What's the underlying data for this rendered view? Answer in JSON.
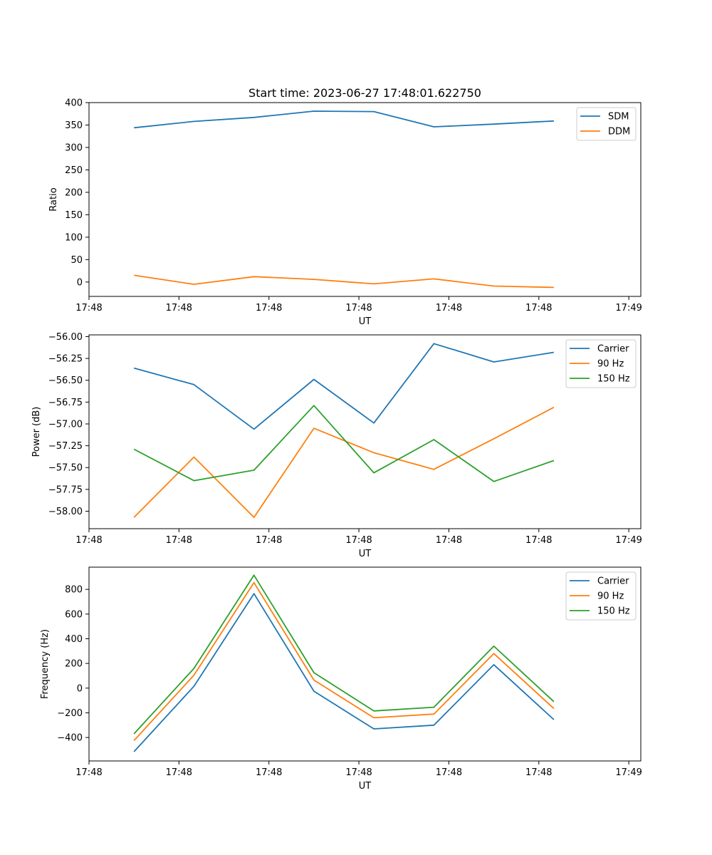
{
  "figure": {
    "title": "Start time: 2023-06-27 17:48:01.622750"
  },
  "chart_data": [
    {
      "type": "line",
      "title": "Start time: 2023-06-27 17:48:01.622750",
      "xlabel": "UT",
      "ylabel": "Ratio",
      "x_tick_labels": [
        "17:48",
        "17:48",
        "17:48",
        "17:48",
        "17:48",
        "17:48",
        "17:49"
      ],
      "y_ticks": [
        0,
        50,
        100,
        150,
        200,
        250,
        300,
        350,
        400
      ],
      "ylim": [
        -32,
        400
      ],
      "xlim": [
        0.0,
        9.2
      ],
      "x": [
        0.75,
        1.75,
        2.75,
        3.75,
        4.75,
        5.75,
        6.75,
        7.75
      ],
      "series": [
        {
          "name": "SDM",
          "color": "#1f77b4",
          "values": [
            344,
            358,
            367,
            381,
            380,
            346,
            352,
            359
          ]
        },
        {
          "name": "DDM",
          "color": "#ff7f0e",
          "values": [
            15,
            -5,
            12,
            6,
            -4,
            7,
            -9,
            -12
          ]
        }
      ],
      "legend": "top-right",
      "grid": false
    },
    {
      "type": "line",
      "xlabel": "UT",
      "ylabel": "Power (dB)",
      "x_tick_labels": [
        "17:48",
        "17:48",
        "17:48",
        "17:48",
        "17:48",
        "17:48",
        "17:49"
      ],
      "y_ticks": [
        -58.0,
        -57.75,
        -57.5,
        -57.25,
        -57.0,
        -56.75,
        -56.5,
        -56.25,
        -56.0
      ],
      "y_tick_labels": [
        "−58.00",
        "−57.75",
        "−57.50",
        "−57.25",
        "−57.00",
        "−56.75",
        "−56.50",
        "−56.25",
        "−56.00"
      ],
      "ylim": [
        -58.2,
        -55.98
      ],
      "xlim": [
        0.0,
        9.2
      ],
      "x": [
        0.75,
        1.75,
        2.75,
        3.75,
        4.75,
        5.75,
        6.75,
        7.75
      ],
      "series": [
        {
          "name": "Carrier",
          "color": "#1f77b4",
          "values": [
            -56.36,
            -56.55,
            -57.06,
            -56.49,
            -56.99,
            -56.08,
            -56.29,
            -56.18
          ]
        },
        {
          "name": "90 Hz",
          "color": "#ff7f0e",
          "values": [
            -58.07,
            -57.38,
            -58.07,
            -57.05,
            -57.33,
            -57.52,
            -57.17,
            -56.81
          ]
        },
        {
          "name": "150 Hz",
          "color": "#2ca02c",
          "values": [
            -57.29,
            -57.65,
            -57.53,
            -56.79,
            -57.56,
            -57.18,
            -57.66,
            -57.42
          ]
        }
      ],
      "legend": "top-right",
      "grid": false
    },
    {
      "type": "line",
      "xlabel": "UT",
      "ylabel": "Frequency (Hz)",
      "x_tick_labels": [
        "17:48",
        "17:48",
        "17:48",
        "17:48",
        "17:48",
        "17:48",
        "17:49"
      ],
      "y_ticks": [
        -400,
        -200,
        0,
        200,
        400,
        600,
        800
      ],
      "y_tick_labels": [
        "−400",
        "−200",
        "0",
        "200",
        "400",
        "600",
        "800"
      ],
      "ylim": [
        -590,
        980
      ],
      "xlim": [
        0.0,
        9.2
      ],
      "x": [
        0.75,
        1.75,
        2.75,
        3.75,
        4.75,
        5.75,
        6.75,
        7.75
      ],
      "series": [
        {
          "name": "Carrier",
          "color": "#1f77b4",
          "values": [
            -515,
            15,
            765,
            -25,
            -330,
            -300,
            190,
            -255
          ]
        },
        {
          "name": "90 Hz",
          "color": "#ff7f0e",
          "values": [
            -425,
            105,
            855,
            65,
            -240,
            -210,
            280,
            -165
          ]
        },
        {
          "name": "150 Hz",
          "color": "#2ca02c",
          "values": [
            -370,
            160,
            915,
            125,
            -185,
            -155,
            340,
            -110
          ]
        }
      ],
      "legend": "top-right",
      "grid": false
    }
  ]
}
